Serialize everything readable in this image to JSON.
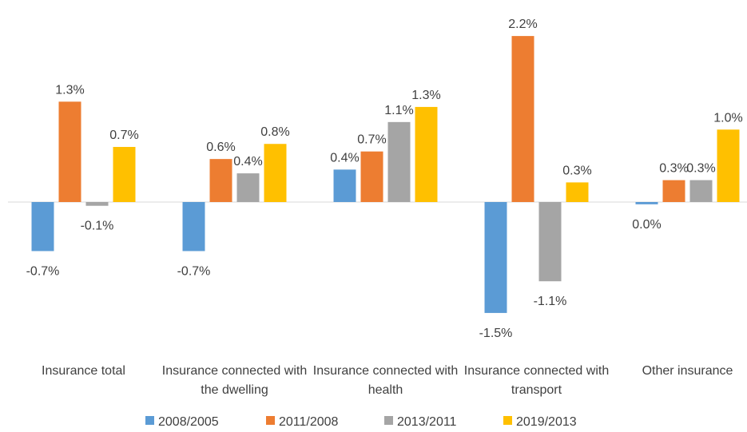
{
  "chart_data": {
    "type": "bar",
    "categories": [
      "Insurance total",
      "Insurance connected with the dwelling",
      "Insurance connected with health",
      "Insurance connected with transport",
      "Other insurance"
    ],
    "series": [
      {
        "name": "2008/2005",
        "color": "#5b9bd5",
        "values": [
          -0.65,
          -0.65,
          0.43,
          -1.47,
          -0.03
        ],
        "value_labels": [
          "-0.7%",
          "-0.7%",
          "0.4%",
          "-1.5%",
          "0.0%"
        ]
      },
      {
        "name": "2011/2008",
        "color": "#ed7d31",
        "values": [
          1.33,
          0.57,
          0.67,
          2.2,
          0.29
        ],
        "value_labels": [
          "1.3%",
          "0.6%",
          "0.7%",
          "2.2%",
          "0.3%"
        ]
      },
      {
        "name": "2013/2011",
        "color": "#a5a5a5",
        "values": [
          -0.05,
          0.38,
          1.06,
          -1.05,
          0.29
        ],
        "value_labels": [
          "-0.1%",
          "0.4%",
          "1.1%",
          "-1.1%",
          "0.3%"
        ]
      },
      {
        "name": "2019/2013",
        "color": "#ffc000",
        "values": [
          0.73,
          0.77,
          1.26,
          0.26,
          0.96
        ],
        "value_labels": [
          "0.7%",
          "0.8%",
          "1.3%",
          "0.3%",
          "1.0%"
        ]
      }
    ],
    "legend": "bottom"
  }
}
